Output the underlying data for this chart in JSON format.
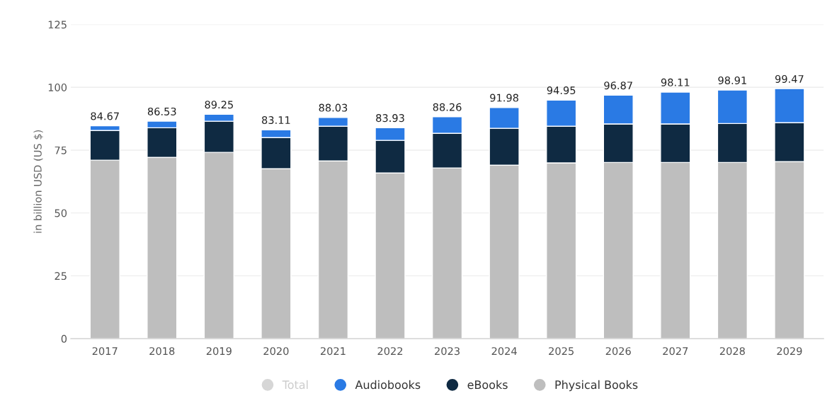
{
  "chart_data": {
    "type": "bar",
    "stacked": true,
    "ylabel": "in billion USD (US $)",
    "categories": [
      "2017",
      "2018",
      "2019",
      "2020",
      "2021",
      "2022",
      "2023",
      "2024",
      "2025",
      "2026",
      "2027",
      "2028",
      "2029"
    ],
    "series": [
      {
        "name": "Physical Books",
        "color": "#bebebe",
        "values": [
          71.0,
          72.1,
          74.1,
          67.6,
          70.7,
          65.9,
          67.9,
          69.0,
          69.9,
          70.1,
          70.1,
          70.1,
          70.4
        ]
      },
      {
        "name": "eBooks",
        "color": "#0f2a42",
        "values": [
          11.8,
          11.8,
          12.4,
          12.4,
          13.8,
          13.0,
          13.8,
          14.7,
          14.6,
          15.3,
          15.3,
          15.5,
          15.5
        ]
      },
      {
        "name": "Audiobooks",
        "color": "#2a7ae4",
        "values": [
          1.87,
          2.63,
          2.75,
          3.11,
          3.53,
          5.03,
          6.56,
          8.28,
          10.45,
          11.47,
          12.71,
          13.31,
          13.57
        ]
      },
      {
        "name": "Total",
        "color": "#d6d6d6",
        "values": [
          null,
          null,
          null,
          null,
          null,
          null,
          null,
          null,
          null,
          null,
          null,
          null,
          null
        ]
      }
    ],
    "totals": [
      "84.67",
      "86.53",
      "89.25",
      "83.11",
      "88.03",
      "83.93",
      "88.26",
      "91.98",
      "94.95",
      "96.87",
      "98.11",
      "98.91",
      "99.47"
    ],
    "ylim": [
      0,
      125
    ],
    "yticks": [
      0,
      25,
      50,
      75,
      100,
      125
    ],
    "grid": "y",
    "legend": "bottom"
  }
}
